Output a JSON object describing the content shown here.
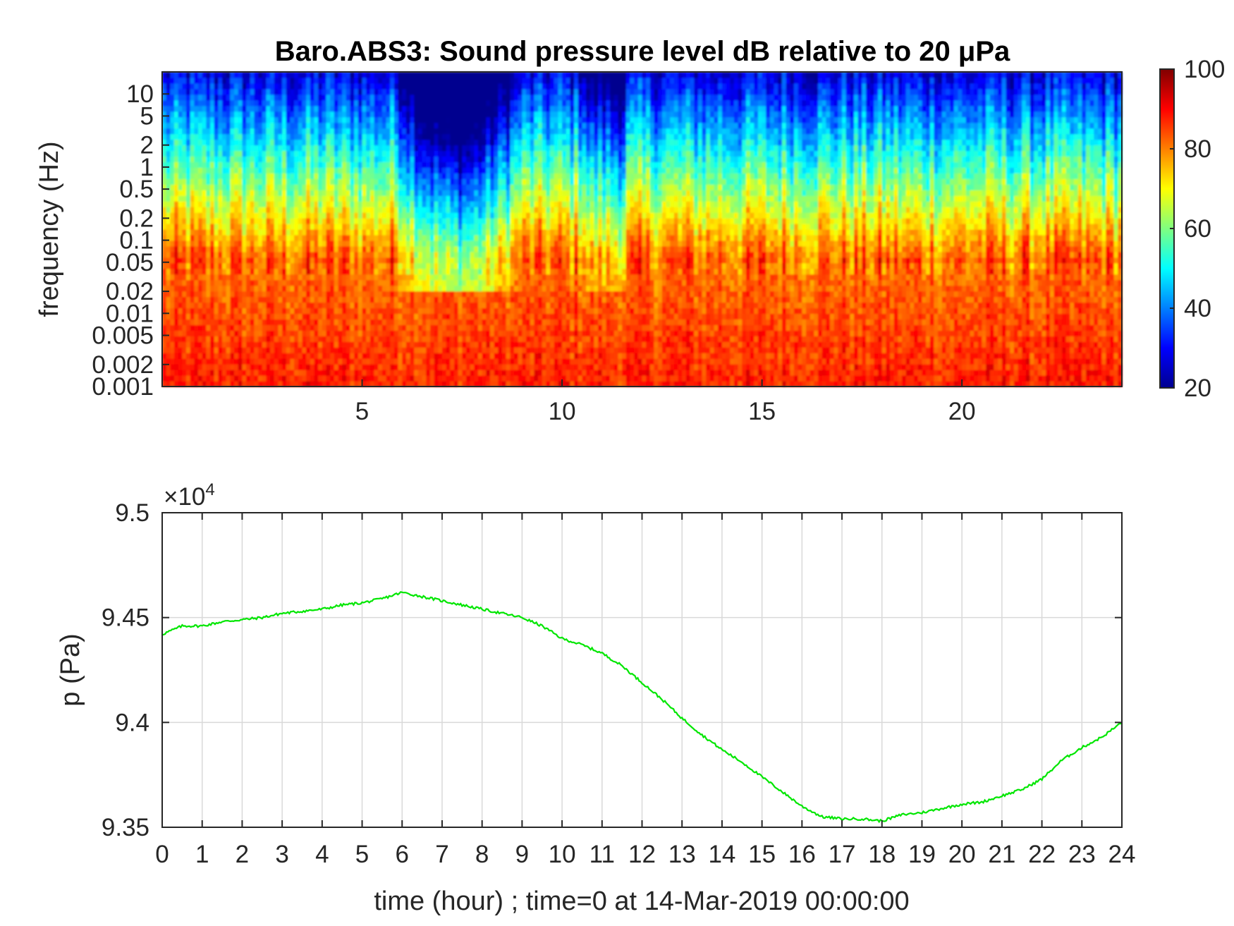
{
  "chart_data": [
    {
      "type": "heatmap",
      "title": "Baro.ABS3: Sound pressure level dB relative to 20 μPa",
      "xlabel": "",
      "ylabel": "frequency (Hz)",
      "xlim": [
        0,
        24
      ],
      "x_ticks": [
        "5",
        "10",
        "15",
        "20"
      ],
      "y_scale": "log",
      "ylim": [
        0.001,
        20
      ],
      "y_ticks": [
        "10",
        "5",
        "2",
        "1",
        "0.5",
        "0.2",
        "0.1",
        "0.05",
        "0.02",
        "0.01",
        "0.005",
        "0.002",
        "0.001"
      ],
      "colorbar": {
        "colormap": "jet",
        "range": [
          20,
          100
        ],
        "ticks": [
          "100",
          "80",
          "60",
          "40",
          "20"
        ]
      },
      "colors": [
        "#00008f",
        "#0000ff",
        "#00ffff",
        "#ffff00",
        "#ff0000",
        "#800000"
      ]
    },
    {
      "type": "line",
      "title": "",
      "xlabel": "time (hour) ; time=0 at 14-Mar-2019 00:00:00",
      "ylabel": "p (Pa)",
      "exponent_prefix": "×10",
      "exponent_power": "4",
      "xlim": [
        0,
        24
      ],
      "ylim": [
        9.35,
        9.5
      ],
      "x_ticks": [
        "0",
        "1",
        "2",
        "3",
        "4",
        "5",
        "6",
        "7",
        "8",
        "9",
        "10",
        "11",
        "12",
        "13",
        "14",
        "15",
        "16",
        "17",
        "18",
        "19",
        "20",
        "21",
        "22",
        "23",
        "24"
      ],
      "y_ticks": [
        "9.5",
        "9.45",
        "9.4",
        "9.35"
      ],
      "grid": true,
      "series_color": "#00e600",
      "x": [
        0,
        0.5,
        1,
        1.5,
        2,
        2.5,
        3,
        3.5,
        4,
        4.5,
        5,
        5.5,
        6,
        6.5,
        7,
        7.5,
        8,
        8.5,
        9,
        9.5,
        10,
        10.5,
        11,
        11.5,
        12,
        12.5,
        13,
        13.5,
        14,
        14.5,
        15,
        15.5,
        16,
        16.5,
        17,
        17.5,
        18,
        18.5,
        19,
        19.5,
        20,
        20.5,
        21,
        21.5,
        22,
        22.5,
        23,
        23.5,
        24
      ],
      "y": [
        9.442,
        9.446,
        9.446,
        9.448,
        9.449,
        9.45,
        9.452,
        9.453,
        9.454,
        9.456,
        9.457,
        9.459,
        9.462,
        9.46,
        9.458,
        9.456,
        9.454,
        9.452,
        9.45,
        9.446,
        9.44,
        9.437,
        9.433,
        9.427,
        9.419,
        9.411,
        9.402,
        9.394,
        9.387,
        9.381,
        9.374,
        9.367,
        9.36,
        9.355,
        9.354,
        9.354,
        9.353,
        9.356,
        9.357,
        9.359,
        9.361,
        9.362,
        9.365,
        9.368,
        9.373,
        9.382,
        9.388,
        9.393,
        9.4
      ]
    }
  ]
}
